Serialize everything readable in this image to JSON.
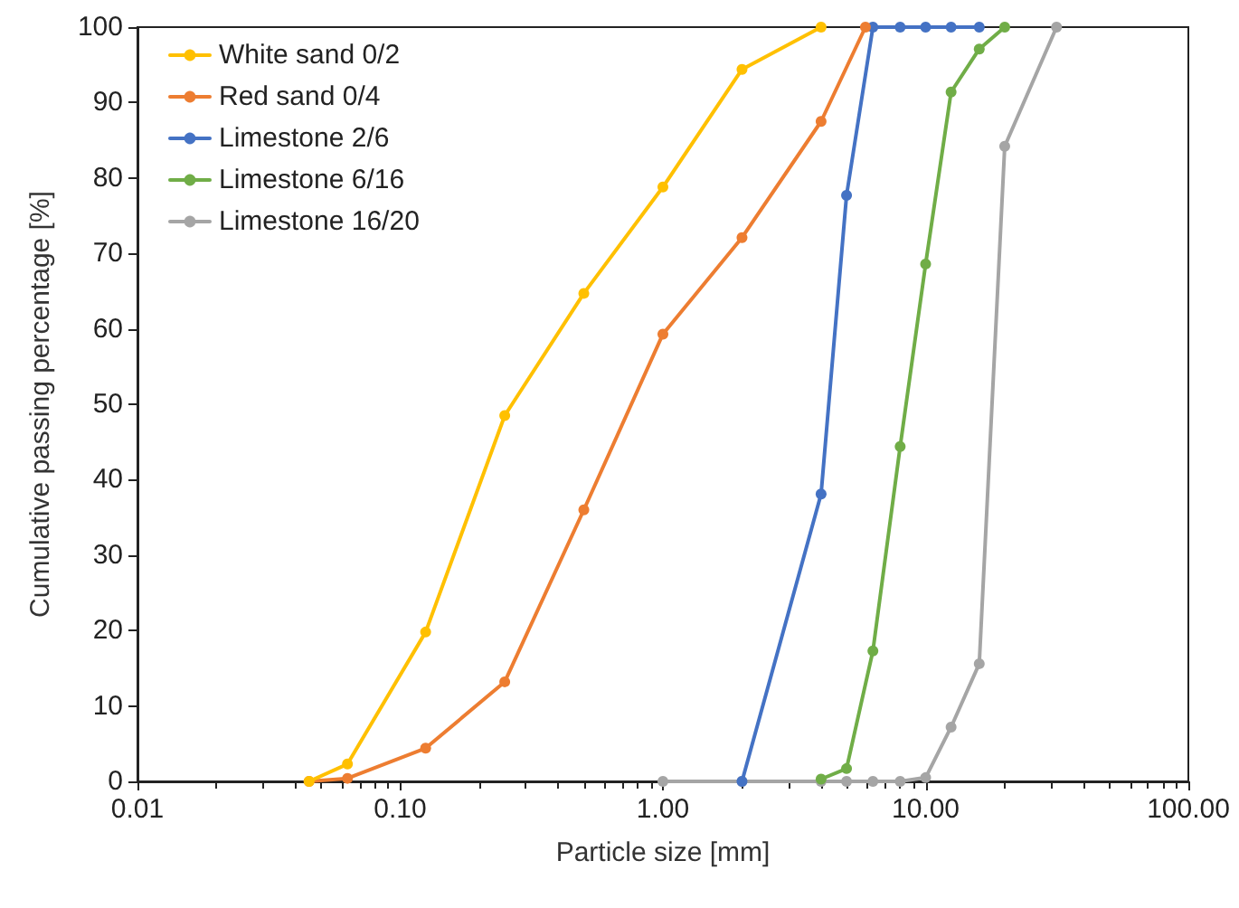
{
  "chart_data": {
    "type": "line",
    "xlabel": "Particle size [mm]",
    "ylabel": "Cumulative passing percentage [%]",
    "log": "x",
    "xlim": [
      0.01,
      100
    ],
    "xticks": [
      {
        "value": 0.01,
        "label": "0.01"
      },
      {
        "value": 0.1,
        "label": "0.10"
      },
      {
        "value": 1,
        "label": "1.00"
      },
      {
        "value": 10,
        "label": "10.00"
      },
      {
        "value": 100,
        "label": "100.00"
      }
    ],
    "ylim": [
      0,
      100
    ],
    "yticks": [
      0,
      10,
      20,
      30,
      40,
      50,
      60,
      70,
      80,
      90,
      100
    ],
    "grid": false,
    "legend": "top left",
    "marker": "circle",
    "line_style": "solid",
    "series": [
      {
        "name": "White sand 0/2",
        "color": "#ffc000",
        "x": [
          0.045,
          0.063,
          0.125,
          0.25,
          0.5,
          1,
          2,
          4
        ],
        "values": [
          0,
          2.3,
          19.8,
          48.5,
          64.7,
          78.8,
          94.4,
          100
        ]
      },
      {
        "name": "Red sand 0/4",
        "color": "#ed7d31",
        "x": [
          0.045,
          0.063,
          0.125,
          0.25,
          0.5,
          1,
          2,
          4,
          5.9
        ],
        "values": [
          0,
          0.4,
          4.4,
          13.2,
          36,
          59.3,
          72.1,
          87.5,
          100
        ]
      },
      {
        "name": "Limestone 2/6",
        "color": "#4472c4",
        "x": [
          2,
          4,
          5,
          6.3,
          8,
          10,
          12.5,
          16
        ],
        "values": [
          0,
          38.1,
          77.7,
          100,
          100,
          100,
          100,
          100
        ]
      },
      {
        "name": "Limestone 6/16",
        "color": "#70ad47",
        "x": [
          4,
          5,
          6.3,
          8,
          10,
          12.5,
          16,
          20
        ],
        "values": [
          0.3,
          1.7,
          17.3,
          44.4,
          68.6,
          91.4,
          97.1,
          100
        ]
      },
      {
        "name": "Limestone 16/20",
        "color": "#a5a5a5",
        "x": [
          1,
          2,
          4,
          5,
          6.3,
          8,
          10,
          12.5,
          16,
          20,
          31.5
        ],
        "values": [
          0,
          0,
          0,
          0,
          0,
          0,
          0.5,
          7.2,
          15.6,
          84.2,
          100
        ]
      }
    ]
  }
}
